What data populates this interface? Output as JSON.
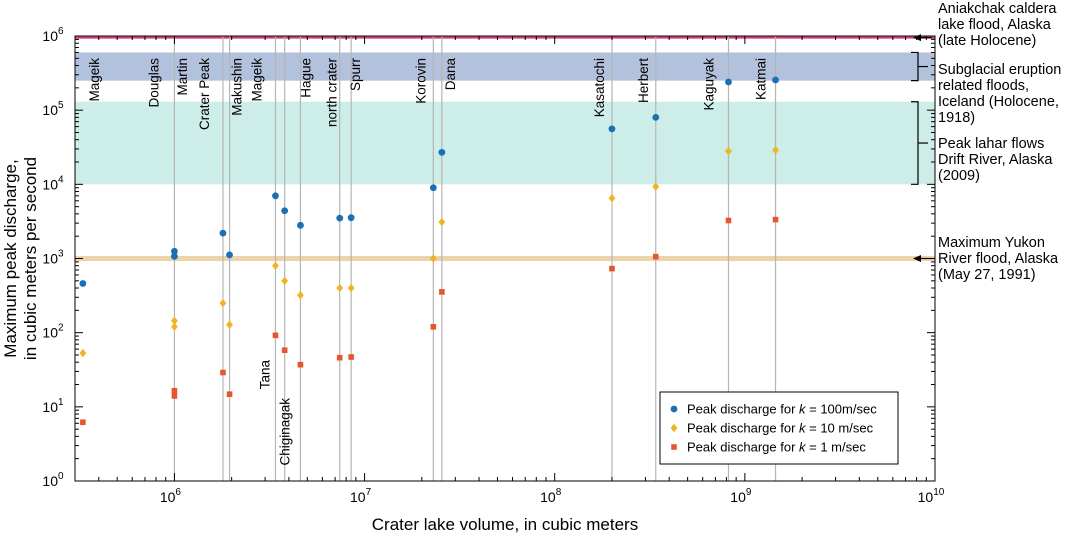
{
  "chart_data": {
    "type": "scatter",
    "title": "",
    "xlabel": "Crater lake volume, in cubic meters",
    "ylabel_line1": "Maximum peak discharge,",
    "ylabel_line2": "in cubic meters per second",
    "xscale": "log",
    "yscale": "log",
    "xlim": [
      300000,
      10000000000
    ],
    "ylim": [
      1,
      1000000
    ],
    "x_ticks": [
      {
        "exp": 6,
        "base": "10",
        "sup": "6"
      },
      {
        "exp": 7,
        "base": "10",
        "sup": "7"
      },
      {
        "exp": 8,
        "base": "10",
        "sup": "8"
      },
      {
        "exp": 9,
        "base": "10",
        "sup": "9"
      },
      {
        "exp": 10,
        "base": "10",
        "sup": "10"
      }
    ],
    "y_ticks": [
      {
        "exp": 0,
        "base": "10",
        "sup": "0"
      },
      {
        "exp": 1,
        "base": "10",
        "sup": "1"
      },
      {
        "exp": 2,
        "base": "10",
        "sup": "2"
      },
      {
        "exp": 3,
        "base": "10",
        "sup": "3"
      },
      {
        "exp": 4,
        "base": "10",
        "sup": "4"
      },
      {
        "exp": 5,
        "base": "10",
        "sup": "5"
      },
      {
        "exp": 6,
        "base": "10",
        "sup": "6"
      }
    ],
    "bands": [
      {
        "name": "Subglacial eruption related floods",
        "y0": 250000,
        "y1": 600000,
        "color": "#b3c2dc"
      },
      {
        "name": "Peak lahar flows Drift River",
        "y0": 10000,
        "y1": 130000,
        "color": "#cdede8"
      }
    ],
    "reference_lines": [
      {
        "name": "Aniakchak",
        "y": 950000,
        "color": "#d6337a"
      },
      {
        "name": "Yukon",
        "y": 1000,
        "color": "#edd3a9"
      }
    ],
    "lakes": [
      {
        "name": "Mageik",
        "x": 330000,
        "line": false
      },
      {
        "name": "Douglas",
        "x": 1000000,
        "line": true
      },
      {
        "name": "Martin",
        "x": 1010000,
        "line": false
      },
      {
        "name": "Crater Peak",
        "x": 1800000,
        "line": true
      },
      {
        "name": "Makushin",
        "x": 1950000,
        "line": true
      },
      {
        "name": "Mageik",
        "x": 3400000,
        "line": true
      },
      {
        "name": "Tana",
        "x": 3400000,
        "line": false
      },
      {
        "name": "Chiginagak",
        "x": 3800000,
        "line": true
      },
      {
        "name": "Hague",
        "x": 4600000,
        "line": true
      },
      {
        "name": "north crater",
        "x": 7400000,
        "line": true
      },
      {
        "name": "Spurr",
        "x": 8500000,
        "line": true
      },
      {
        "name": "Korovin",
        "x": 23000000,
        "line": true
      },
      {
        "name": "Dana",
        "x": 25500000,
        "line": true
      },
      {
        "name": "Kasatochi",
        "x": 200000000,
        "line": true
      },
      {
        "name": "Herbert",
        "x": 340000000,
        "line": true
      },
      {
        "name": "Kaguyak",
        "x": 820000000,
        "line": true
      },
      {
        "name": "Katmai",
        "x": 1450000000,
        "line": true
      }
    ],
    "series": [
      {
        "name": "k100",
        "color": "#1a6fb5",
        "marker": "circle",
        "points": [
          [
            330000,
            460
          ],
          [
            1000000,
            1250
          ],
          [
            1000000,
            1070
          ],
          [
            1800000,
            2200
          ],
          [
            1950000,
            1120
          ],
          [
            3400000,
            7000
          ],
          [
            3800000,
            4400
          ],
          [
            4600000,
            2800
          ],
          [
            7400000,
            3500
          ],
          [
            8500000,
            3550
          ],
          [
            23000000,
            9000
          ],
          [
            25500000,
            27000
          ],
          [
            200000000,
            56000
          ],
          [
            340000000,
            80000
          ],
          [
            820000000,
            240000
          ],
          [
            1450000000,
            255000
          ]
        ]
      },
      {
        "name": "k10",
        "color": "#f0b323",
        "marker": "diamond",
        "points": [
          [
            330000,
            53
          ],
          [
            1000000,
            145
          ],
          [
            1000000,
            120
          ],
          [
            1800000,
            250
          ],
          [
            1950000,
            128
          ],
          [
            3400000,
            800
          ],
          [
            3800000,
            500
          ],
          [
            4600000,
            320
          ],
          [
            7400000,
            400
          ],
          [
            8500000,
            400
          ],
          [
            23000000,
            1000
          ],
          [
            25500000,
            3100
          ],
          [
            200000000,
            6500
          ],
          [
            340000000,
            9300
          ],
          [
            820000000,
            28000
          ],
          [
            1450000000,
            29000
          ]
        ]
      },
      {
        "name": "k1",
        "color": "#e4572e",
        "marker": "square",
        "points": [
          [
            330000,
            6.2
          ],
          [
            1000000,
            16.5
          ],
          [
            1000000,
            14
          ],
          [
            1800000,
            29
          ],
          [
            1950000,
            14.8
          ],
          [
            3400000,
            92
          ],
          [
            3800000,
            58
          ],
          [
            4600000,
            37
          ],
          [
            7400000,
            46
          ],
          [
            8500000,
            47
          ],
          [
            23000000,
            120
          ],
          [
            25500000,
            355
          ],
          [
            200000000,
            730
          ],
          [
            340000000,
            1060
          ],
          [
            820000000,
            3250
          ],
          [
            1450000000,
            3350
          ]
        ]
      }
    ],
    "legend": [
      {
        "series": "k100",
        "prefix": "Peak discharge for ",
        "k": "k",
        "suffix": " = 100m/sec"
      },
      {
        "series": "k10",
        "prefix": "Peak discharge for ",
        "k": "k",
        "suffix": " = 10 m/sec"
      },
      {
        "series": "k1",
        "prefix": "Peak discharge for ",
        "k": "k",
        "suffix": " = 1 m/sec"
      }
    ],
    "legend_position": "bottom-right",
    "annotations": [
      {
        "name": "aniakchak",
        "lines": [
          "Aniakchak caldera",
          "lake flood, Alaska",
          "(late Holocene)"
        ],
        "marker": "arrow",
        "target_y": 950000
      },
      {
        "name": "subglacial",
        "lines": [
          "Subglacial eruption",
          "related floods,",
          "Iceland (Holocene,",
          "1918)"
        ],
        "marker": "bracket",
        "y0": 250000,
        "y1": 600000
      },
      {
        "name": "lahar",
        "lines": [
          "Peak lahar flows",
          "Drift River, Alaska",
          "(2009)"
        ],
        "marker": "bracket",
        "y0": 10000,
        "y1": 130000
      },
      {
        "name": "yukon",
        "lines": [
          "Maximum Yukon",
          "River flood, Alaska",
          "(May 27, 1991)"
        ],
        "marker": "arrow",
        "target_y": 1000
      }
    ]
  }
}
